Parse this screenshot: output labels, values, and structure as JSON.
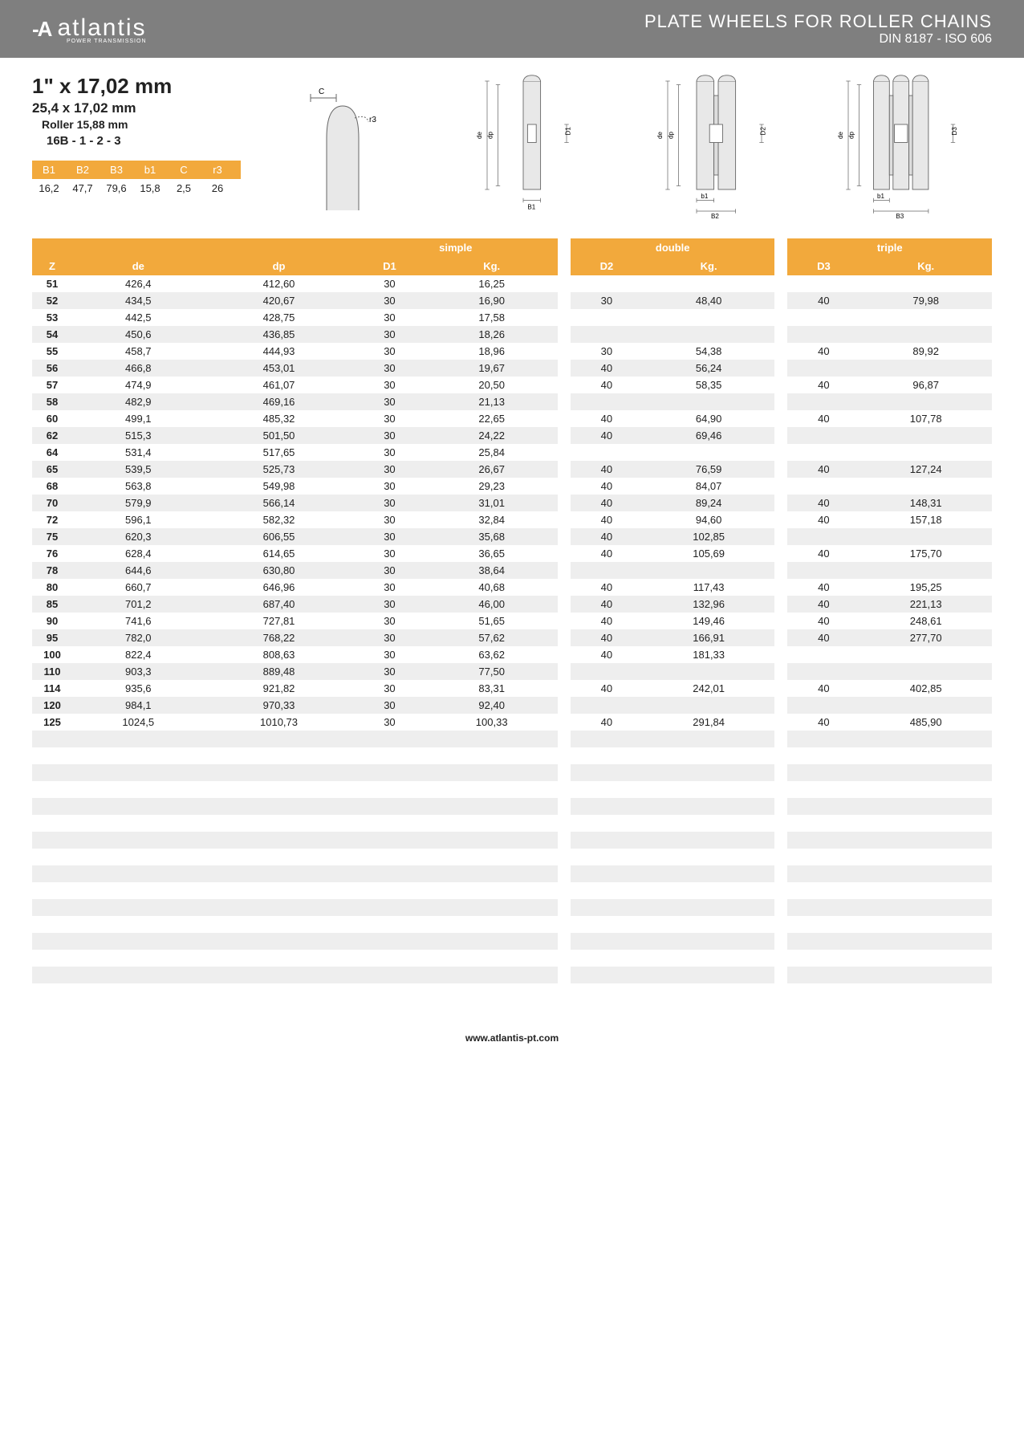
{
  "header": {
    "logo_text": "atlantis",
    "logo_sub": "POWER TRANSMISSION",
    "title1": "PLATE WHEELS FOR ROLLER CHAINS",
    "title2": "DIN 8187 - ISO 606"
  },
  "spec": {
    "title": "1\" x 17,02 mm",
    "sub1": "25,4 x 17,02 mm",
    "sub2": "Roller 15,88 mm",
    "sub3": "16B - 1 - 2 - 3"
  },
  "params": {
    "headers": [
      "B1",
      "B2",
      "B3",
      "b1",
      "C",
      "r3"
    ],
    "values": [
      "16,2",
      "47,7",
      "79,6",
      "15,8",
      "2,5",
      "26"
    ]
  },
  "table": {
    "group_labels": [
      "simple",
      "double",
      "triple"
    ],
    "sub_headers": {
      "left": [
        "Z",
        "de",
        "dp"
      ],
      "simple": [
        "D1",
        "Kg."
      ],
      "double": [
        "D2",
        "Kg."
      ],
      "triple": [
        "D3",
        "Kg."
      ]
    },
    "rows": [
      {
        "z": "51",
        "de": "426,4",
        "dp": "412,60",
        "d1": "30",
        "kg1": "16,25",
        "d2": "",
        "kg2": "",
        "d3": "",
        "kg3": ""
      },
      {
        "z": "52",
        "de": "434,5",
        "dp": "420,67",
        "d1": "30",
        "kg1": "16,90",
        "d2": "30",
        "kg2": "48,40",
        "d3": "40",
        "kg3": "79,98"
      },
      {
        "z": "53",
        "de": "442,5",
        "dp": "428,75",
        "d1": "30",
        "kg1": "17,58",
        "d2": "",
        "kg2": "",
        "d3": "",
        "kg3": ""
      },
      {
        "z": "54",
        "de": "450,6",
        "dp": "436,85",
        "d1": "30",
        "kg1": "18,26",
        "d2": "",
        "kg2": "",
        "d3": "",
        "kg3": ""
      },
      {
        "z": "55",
        "de": "458,7",
        "dp": "444,93",
        "d1": "30",
        "kg1": "18,96",
        "d2": "30",
        "kg2": "54,38",
        "d3": "40",
        "kg3": "89,92"
      },
      {
        "z": "56",
        "de": "466,8",
        "dp": "453,01",
        "d1": "30",
        "kg1": "19,67",
        "d2": "40",
        "kg2": "56,24",
        "d3": "",
        "kg3": ""
      },
      {
        "z": "57",
        "de": "474,9",
        "dp": "461,07",
        "d1": "30",
        "kg1": "20,50",
        "d2": "40",
        "kg2": "58,35",
        "d3": "40",
        "kg3": "96,87"
      },
      {
        "z": "58",
        "de": "482,9",
        "dp": "469,16",
        "d1": "30",
        "kg1": "21,13",
        "d2": "",
        "kg2": "",
        "d3": "",
        "kg3": ""
      },
      {
        "z": "60",
        "de": "499,1",
        "dp": "485,32",
        "d1": "30",
        "kg1": "22,65",
        "d2": "40",
        "kg2": "64,90",
        "d3": "40",
        "kg3": "107,78"
      },
      {
        "z": "62",
        "de": "515,3",
        "dp": "501,50",
        "d1": "30",
        "kg1": "24,22",
        "d2": "40",
        "kg2": "69,46",
        "d3": "",
        "kg3": ""
      },
      {
        "z": "64",
        "de": "531,4",
        "dp": "517,65",
        "d1": "30",
        "kg1": "25,84",
        "d2": "",
        "kg2": "",
        "d3": "",
        "kg3": ""
      },
      {
        "z": "65",
        "de": "539,5",
        "dp": "525,73",
        "d1": "30",
        "kg1": "26,67",
        "d2": "40",
        "kg2": "76,59",
        "d3": "40",
        "kg3": "127,24"
      },
      {
        "z": "68",
        "de": "563,8",
        "dp": "549,98",
        "d1": "30",
        "kg1": "29,23",
        "d2": "40",
        "kg2": "84,07",
        "d3": "",
        "kg3": ""
      },
      {
        "z": "70",
        "de": "579,9",
        "dp": "566,14",
        "d1": "30",
        "kg1": "31,01",
        "d2": "40",
        "kg2": "89,24",
        "d3": "40",
        "kg3": "148,31"
      },
      {
        "z": "72",
        "de": "596,1",
        "dp": "582,32",
        "d1": "30",
        "kg1": "32,84",
        "d2": "40",
        "kg2": "94,60",
        "d3": "40",
        "kg3": "157,18"
      },
      {
        "z": "75",
        "de": "620,3",
        "dp": "606,55",
        "d1": "30",
        "kg1": "35,68",
        "d2": "40",
        "kg2": "102,85",
        "d3": "",
        "kg3": ""
      },
      {
        "z": "76",
        "de": "628,4",
        "dp": "614,65",
        "d1": "30",
        "kg1": "36,65",
        "d2": "40",
        "kg2": "105,69",
        "d3": "40",
        "kg3": "175,70"
      },
      {
        "z": "78",
        "de": "644,6",
        "dp": "630,80",
        "d1": "30",
        "kg1": "38,64",
        "d2": "",
        "kg2": "",
        "d3": "",
        "kg3": ""
      },
      {
        "z": "80",
        "de": "660,7",
        "dp": "646,96",
        "d1": "30",
        "kg1": "40,68",
        "d2": "40",
        "kg2": "117,43",
        "d3": "40",
        "kg3": "195,25"
      },
      {
        "z": "85",
        "de": "701,2",
        "dp": "687,40",
        "d1": "30",
        "kg1": "46,00",
        "d2": "40",
        "kg2": "132,96",
        "d3": "40",
        "kg3": "221,13"
      },
      {
        "z": "90",
        "de": "741,6",
        "dp": "727,81",
        "d1": "30",
        "kg1": "51,65",
        "d2": "40",
        "kg2": "149,46",
        "d3": "40",
        "kg3": "248,61"
      },
      {
        "z": "95",
        "de": "782,0",
        "dp": "768,22",
        "d1": "30",
        "kg1": "57,62",
        "d2": "40",
        "kg2": "166,91",
        "d3": "40",
        "kg3": "277,70"
      },
      {
        "z": "100",
        "de": "822,4",
        "dp": "808,63",
        "d1": "30",
        "kg1": "63,62",
        "d2": "40",
        "kg2": "181,33",
        "d3": "",
        "kg3": ""
      },
      {
        "z": "110",
        "de": "903,3",
        "dp": "889,48",
        "d1": "30",
        "kg1": "77,50",
        "d2": "",
        "kg2": "",
        "d3": "",
        "kg3": ""
      },
      {
        "z": "114",
        "de": "935,6",
        "dp": "921,82",
        "d1": "30",
        "kg1": "83,31",
        "d2": "40",
        "kg2": "242,01",
        "d3": "40",
        "kg3": "402,85"
      },
      {
        "z": "120",
        "de": "984,1",
        "dp": "970,33",
        "d1": "30",
        "kg1": "92,40",
        "d2": "",
        "kg2": "",
        "d3": "",
        "kg3": ""
      },
      {
        "z": "125",
        "de": "1024,5",
        "dp": "1010,73",
        "d1": "30",
        "kg1": "100,33",
        "d2": "40",
        "kg2": "291,84",
        "d3": "40",
        "kg3": "485,90"
      }
    ],
    "empty_rows": 16
  },
  "diagram_labels": {
    "c": "C",
    "r3": "r3",
    "de": "de",
    "dp": "dp",
    "d1": "D1",
    "d2": "D2",
    "d3": "D3",
    "b1lc": "b1",
    "b1": "B1",
    "b2": "B2",
    "b3": "B3"
  },
  "colors": {
    "header_bg": "#7f7f7f",
    "accent": "#f2a93c",
    "row_alt": "#eeeeee",
    "text": "#222222"
  },
  "footer": {
    "url": "www.atlantis-pt.com"
  }
}
